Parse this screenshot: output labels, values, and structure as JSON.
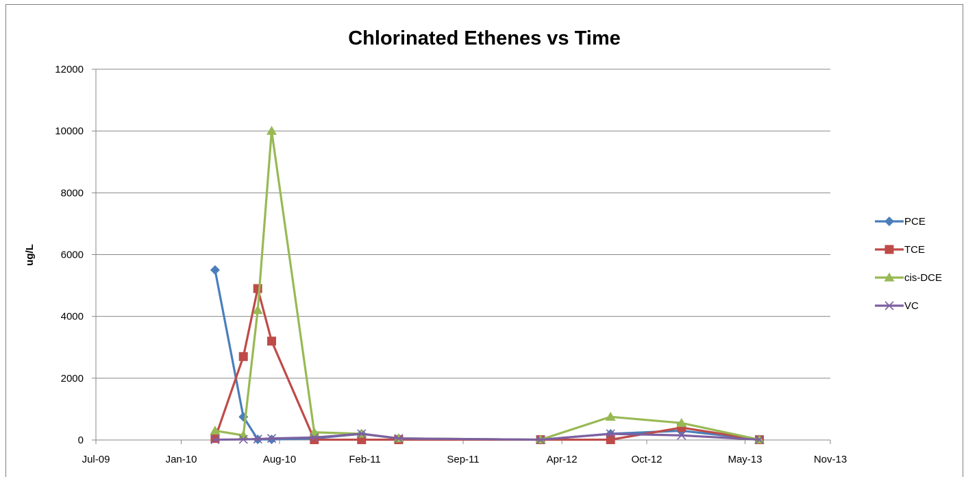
{
  "chart_data": {
    "type": "line",
    "title": "Chlorinated Ethenes vs Time",
    "xlabel": "",
    "ylabel": "ug/L",
    "x_ticks": [
      "Jul-09",
      "Jan-10",
      "Aug-10",
      "Feb-11",
      "Sep-11",
      "Apr-12",
      "Oct-12",
      "May-13",
      "Nov-13"
    ],
    "x_tick_dates": [
      "2009-07-01",
      "2010-01-01",
      "2010-08-01",
      "2011-02-01",
      "2011-09-01",
      "2012-04-01",
      "2012-10-01",
      "2013-05-01",
      "2013-11-01"
    ],
    "xlim": [
      "2009-07-01",
      "2013-11-01"
    ],
    "ylim": [
      0,
      12000
    ],
    "y_ticks": [
      0,
      2000,
      4000,
      6000,
      8000,
      10000,
      12000
    ],
    "grid": "horizontal",
    "legend_position": "right",
    "series": [
      {
        "name": "PCE",
        "color": "#4a7ebb",
        "marker": "diamond",
        "x": [
          "2010-03-15",
          "2010-05-15",
          "2010-06-15",
          "2010-07-15",
          "2010-10-15",
          "2011-01-25",
          "2011-04-15",
          "2012-02-15",
          "2012-07-15",
          "2012-12-15",
          "2013-06-01"
        ],
        "y": [
          5500,
          750,
          20,
          20,
          50,
          200,
          50,
          10,
          200,
          300,
          20
        ]
      },
      {
        "name": "TCE",
        "color": "#be4b48",
        "marker": "square",
        "x": [
          "2010-03-15",
          "2010-05-15",
          "2010-06-15",
          "2010-07-15",
          "2010-10-15",
          "2011-01-25",
          "2011-04-15",
          "2012-02-15",
          "2012-07-15",
          "2012-12-15",
          "2013-06-01"
        ],
        "y": [
          50,
          2700,
          4900,
          3200,
          10,
          10,
          10,
          10,
          10,
          400,
          10
        ]
      },
      {
        "name": "cis-DCE",
        "color": "#98b954",
        "marker": "triangle",
        "x": [
          "2010-03-15",
          "2010-05-15",
          "2010-06-15",
          "2010-07-15",
          "2010-10-15",
          "2011-01-25",
          "2011-04-15",
          "2012-02-15",
          "2012-07-15",
          "2012-12-15",
          "2013-06-01"
        ],
        "y": [
          300,
          150,
          4200,
          10000,
          250,
          200,
          50,
          10,
          750,
          550,
          10
        ]
      },
      {
        "name": "VC",
        "color": "#7d60a0",
        "marker": "x",
        "x": [
          "2010-03-15",
          "2010-05-15",
          "2010-06-15",
          "2010-07-15",
          "2010-10-15",
          "2011-01-25",
          "2011-04-15",
          "2012-02-15",
          "2012-07-15",
          "2012-12-15",
          "2013-06-01"
        ],
        "y": [
          10,
          20,
          30,
          50,
          80,
          200,
          50,
          10,
          200,
          150,
          10
        ]
      }
    ]
  }
}
